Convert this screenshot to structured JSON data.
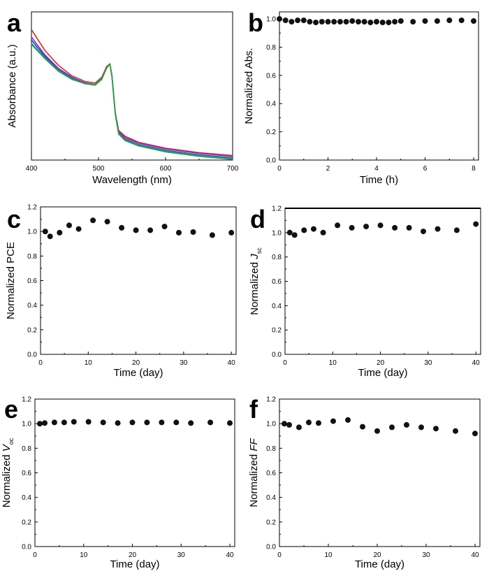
{
  "chart_data": [
    {
      "panel": "a",
      "type": "line",
      "xlabel": "Wavelength (nm)",
      "ylabel": "Absorbance (a.u.)",
      "xlim": [
        400,
        700
      ],
      "ylim": [
        0,
        1.0
      ],
      "xticks": [
        400,
        500,
        600,
        700
      ],
      "yticks": [],
      "x": [
        400,
        420,
        440,
        460,
        480,
        495,
        505,
        512,
        517,
        520,
        525,
        530,
        540,
        560,
        600,
        650,
        700
      ],
      "series": [
        {
          "color": "#d62728",
          "values": [
            0.88,
            0.74,
            0.64,
            0.57,
            0.53,
            0.52,
            0.56,
            0.63,
            0.65,
            0.57,
            0.32,
            0.2,
            0.16,
            0.12,
            0.08,
            0.05,
            0.03
          ]
        },
        {
          "color": "#9b27b0",
          "values": [
            0.83,
            0.71,
            0.62,
            0.56,
            0.52,
            0.51,
            0.55,
            0.62,
            0.65,
            0.57,
            0.32,
            0.19,
            0.15,
            0.115,
            0.075,
            0.045,
            0.025
          ]
        },
        {
          "color": "#1f3fd6",
          "values": [
            0.81,
            0.7,
            0.61,
            0.555,
            0.52,
            0.51,
            0.55,
            0.62,
            0.65,
            0.57,
            0.32,
            0.185,
            0.14,
            0.105,
            0.065,
            0.035,
            0.015
          ]
        },
        {
          "color": "#17a2b8",
          "values": [
            0.79,
            0.69,
            0.605,
            0.55,
            0.515,
            0.51,
            0.55,
            0.62,
            0.65,
            0.57,
            0.315,
            0.18,
            0.135,
            0.1,
            0.06,
            0.03,
            0.01
          ]
        },
        {
          "color": "#2ca02c",
          "values": [
            0.78,
            0.685,
            0.6,
            0.545,
            0.515,
            0.505,
            0.545,
            0.62,
            0.65,
            0.565,
            0.31,
            0.175,
            0.13,
            0.095,
            0.055,
            0.025,
            0.005
          ]
        }
      ]
    },
    {
      "panel": "b",
      "type": "scatter",
      "xlabel": "Time (h)",
      "ylabel": "Normalized Abs.",
      "xlim": [
        0,
        8.2
      ],
      "ylim": [
        0,
        1.05
      ],
      "xticks": [
        0,
        2,
        4,
        6,
        8
      ],
      "yticks": [
        0.0,
        0.2,
        0.4,
        0.6,
        0.8,
        1.0
      ],
      "x": [
        0,
        0.25,
        0.5,
        0.75,
        1.0,
        1.25,
        1.5,
        1.75,
        2.0,
        2.25,
        2.5,
        2.75,
        3.0,
        3.25,
        3.5,
        3.75,
        4.0,
        4.25,
        4.5,
        4.75,
        5.0,
        5.5,
        6.0,
        6.5,
        7.0,
        7.5,
        8.0
      ],
      "values": [
        1.0,
        0.99,
        0.98,
        0.99,
        0.99,
        0.98,
        0.975,
        0.98,
        0.98,
        0.98,
        0.98,
        0.98,
        0.985,
        0.98,
        0.98,
        0.975,
        0.98,
        0.975,
        0.975,
        0.98,
        0.985,
        0.98,
        0.985,
        0.985,
        0.99,
        0.99,
        0.985
      ]
    },
    {
      "panel": "c",
      "type": "scatter",
      "xlabel": "Time (day)",
      "ylabel": "Normalized PCE",
      "xlim": [
        0,
        41
      ],
      "ylim": [
        0,
        1.2
      ],
      "xticks": [
        0,
        10,
        20,
        30,
        40
      ],
      "yticks": [
        0.0,
        0.2,
        0.4,
        0.6,
        0.8,
        1.0,
        1.2
      ],
      "x": [
        1,
        2,
        4,
        6,
        8,
        11,
        14,
        17,
        20,
        23,
        26,
        29,
        32,
        36,
        40
      ],
      "values": [
        1.0,
        0.96,
        0.99,
        1.05,
        1.02,
        1.09,
        1.08,
        1.03,
        1.01,
        1.01,
        1.04,
        0.99,
        0.995,
        0.97,
        0.99
      ]
    },
    {
      "panel": "d",
      "type": "scatter",
      "xlabel": "Time (day)",
      "ylabel": "Normalized",
      "ylabel_var": "J",
      "ylabel_sub": "sc",
      "xlim": [
        0,
        41
      ],
      "ylim": [
        0,
        1.2
      ],
      "xticks": [
        0,
        10,
        20,
        30,
        40
      ],
      "yticks": [
        0.0,
        0.2,
        0.4,
        0.6,
        0.8,
        1.0,
        1.2
      ],
      "x": [
        1,
        2,
        4,
        6,
        8,
        11,
        14,
        17,
        20,
        23,
        26,
        29,
        32,
        36,
        40
      ],
      "values": [
        1.0,
        0.98,
        1.02,
        1.03,
        1.0,
        1.06,
        1.04,
        1.05,
        1.06,
        1.04,
        1.04,
        1.01,
        1.03,
        1.02,
        1.07
      ]
    },
    {
      "panel": "e",
      "type": "scatter",
      "xlabel": "Time (day)",
      "ylabel": "Normalized",
      "ylabel_var": "V",
      "ylabel_sub": "oc",
      "xlim": [
        0,
        41
      ],
      "ylim": [
        0,
        1.2
      ],
      "xticks": [
        0,
        10,
        20,
        30,
        40
      ],
      "yticks": [
        0.0,
        0.2,
        0.4,
        0.6,
        0.8,
        1.0,
        1.2
      ],
      "x": [
        1,
        2,
        4,
        6,
        8,
        11,
        14,
        17,
        20,
        23,
        26,
        29,
        32,
        36,
        40
      ],
      "values": [
        1.0,
        1.005,
        1.01,
        1.01,
        1.015,
        1.015,
        1.01,
        1.005,
        1.01,
        1.01,
        1.01,
        1.01,
        1.005,
        1.01,
        1.005
      ]
    },
    {
      "panel": "f",
      "type": "scatter",
      "xlabel": "Time (day)",
      "ylabel": "Normalized",
      "ylabel_var": "FF",
      "ylabel_sub": "",
      "xlim": [
        0,
        41
      ],
      "ylim": [
        0,
        1.2
      ],
      "xticks": [
        0,
        10,
        20,
        30,
        40
      ],
      "yticks": [
        0.0,
        0.2,
        0.4,
        0.6,
        0.8,
        1.0,
        1.2
      ],
      "x": [
        1,
        2,
        4,
        6,
        8,
        11,
        14,
        17,
        20,
        23,
        26,
        29,
        32,
        36,
        40
      ],
      "values": [
        1.0,
        0.99,
        0.97,
        1.01,
        1.005,
        1.02,
        1.03,
        0.975,
        0.94,
        0.97,
        0.99,
        0.97,
        0.96,
        0.94,
        0.92
      ]
    }
  ]
}
